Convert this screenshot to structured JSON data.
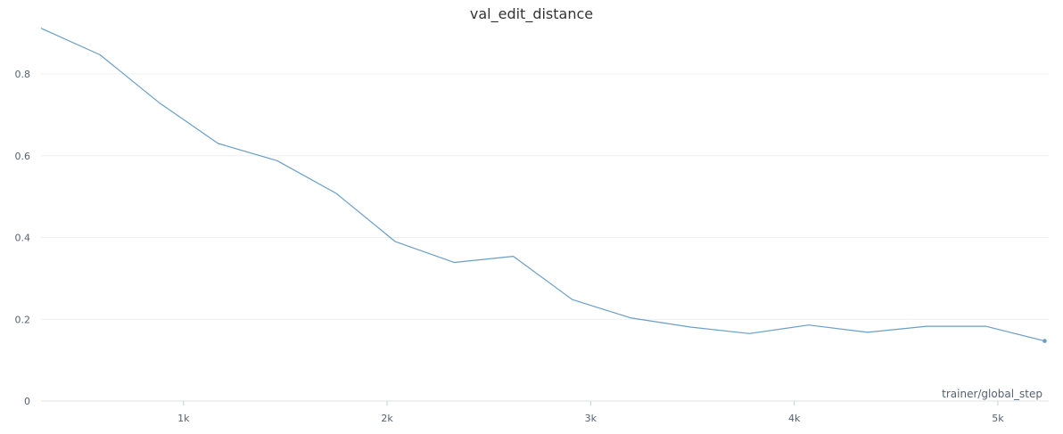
{
  "chart_data": {
    "type": "line",
    "title": "val_edit_distance",
    "xlabel": "trainer/global_step",
    "ylabel": "",
    "xlim": [
      300,
      5250
    ],
    "ylim": [
      0,
      0.92
    ],
    "xticks": [
      {
        "value": 1000,
        "label": "1k"
      },
      {
        "value": 2000,
        "label": "2k"
      },
      {
        "value": 3000,
        "label": "3k"
      },
      {
        "value": 4000,
        "label": "4k"
      },
      {
        "value": 5000,
        "label": "5k"
      }
    ],
    "yticks": [
      {
        "value": 0,
        "label": "0"
      },
      {
        "value": 0.2,
        "label": "0.2"
      },
      {
        "value": 0.4,
        "label": "0.4"
      },
      {
        "value": 0.6,
        "label": "0.6"
      },
      {
        "value": 0.8,
        "label": "0.8"
      }
    ],
    "grid": true,
    "series": [
      {
        "name": "",
        "color": "#6a9ec6",
        "x": [
          300,
          590,
          880,
          1170,
          1460,
          1750,
          2040,
          2330,
          2620,
          2910,
          3200,
          3490,
          3780,
          4070,
          4360,
          4650,
          4940,
          5230
        ],
        "y": [
          0.912,
          0.847,
          0.73,
          0.63,
          0.588,
          0.508,
          0.39,
          0.339,
          0.354,
          0.248,
          0.203,
          0.181,
          0.165,
          0.186,
          0.168,
          0.183,
          0.183,
          0.147
        ]
      }
    ]
  }
}
